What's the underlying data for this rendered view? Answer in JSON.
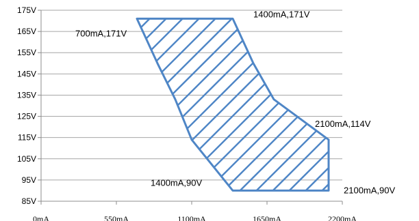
{
  "chart_data": {
    "type": "area",
    "title": "",
    "xlabel": "",
    "ylabel": "",
    "x_ticks": [
      {
        "value": 0,
        "label": "0mA"
      },
      {
        "value": 550,
        "label": "550mA"
      },
      {
        "value": 1100,
        "label": "1100mA"
      },
      {
        "value": 1650,
        "label": "1650mA"
      },
      {
        "value": 2200,
        "label": "2200mA"
      }
    ],
    "y_ticks": [
      {
        "value": 85,
        "label": "85V"
      },
      {
        "value": 95,
        "label": "95V"
      },
      {
        "value": 105,
        "label": "105V"
      },
      {
        "value": 115,
        "label": "115V"
      },
      {
        "value": 125,
        "label": "125V"
      },
      {
        "value": 135,
        "label": "135V"
      },
      {
        "value": 145,
        "label": "145V"
      },
      {
        "value": 155,
        "label": "155V"
      },
      {
        "value": 165,
        "label": "165V"
      },
      {
        "value": 175,
        "label": "175V"
      }
    ],
    "xlim": [
      0,
      2200
    ],
    "ylim": [
      85,
      175
    ],
    "grid": true,
    "region": {
      "fill": "diagonal-hatch",
      "color": "#4f86c6",
      "points": [
        {
          "x": 700,
          "y": 171
        },
        {
          "x": 1400,
          "y": 171
        },
        {
          "x": 1550,
          "y": 150
        },
        {
          "x": 1700,
          "y": 133
        },
        {
          "x": 2100,
          "y": 114
        },
        {
          "x": 2100,
          "y": 90
        },
        {
          "x": 1400,
          "y": 90
        },
        {
          "x": 1100,
          "y": 114
        },
        {
          "x": 980,
          "y": 133
        },
        {
          "x": 850,
          "y": 150
        }
      ]
    },
    "annotations": [
      {
        "label": "700mA,171V",
        "x": 700,
        "y": 171
      },
      {
        "label": "1400mA,171V",
        "x": 1400,
        "y": 171
      },
      {
        "label": "2100mA,114V",
        "x": 2100,
        "y": 114
      },
      {
        "label": "1400mA,90V",
        "x": 1400,
        "y": 90
      },
      {
        "label": "2100mA,90V",
        "x": 2100,
        "y": 90
      }
    ]
  }
}
